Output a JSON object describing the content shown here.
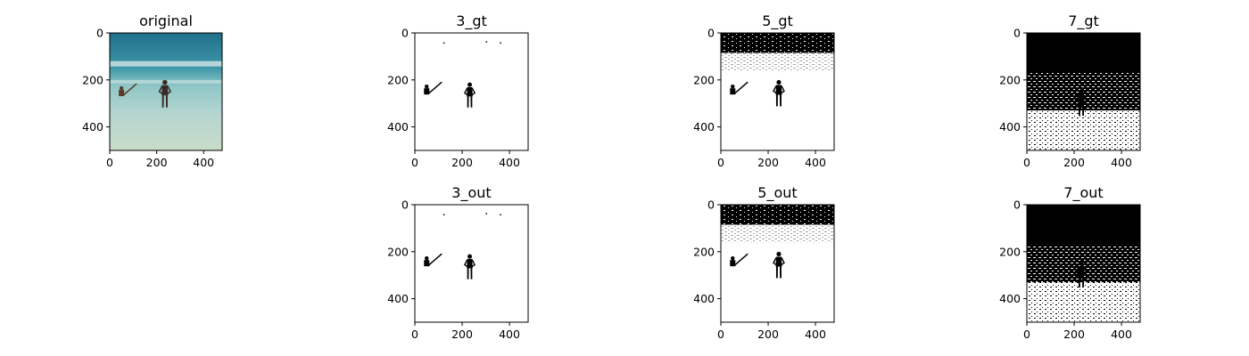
{
  "figure": {
    "panels": [
      {
        "id": "original",
        "title": "original",
        "kind": "photo"
      },
      {
        "id": "gt3",
        "title": "3_gt",
        "kind": "mask3"
      },
      {
        "id": "gt5",
        "title": "5_gt",
        "kind": "mask5"
      },
      {
        "id": "gt7",
        "title": "7_gt",
        "kind": "mask7"
      },
      {
        "id": "out3",
        "title": "3_out",
        "kind": "mask3"
      },
      {
        "id": "out5",
        "title": "5_out",
        "kind": "mask5"
      },
      {
        "id": "out7",
        "title": "7_out",
        "kind": "mask7"
      }
    ]
  },
  "chart_data": [
    {
      "type": "image",
      "title": "original",
      "xlim": [
        0,
        479
      ],
      "ylim": [
        500,
        0
      ],
      "xticks": [
        "0",
        "200",
        "400"
      ],
      "yticks": [
        "0",
        "200",
        "400"
      ]
    },
    {
      "type": "image",
      "title": "3_gt",
      "xlim": [
        0,
        479
      ],
      "ylim": [
        500,
        0
      ],
      "xticks": [
        "0",
        "200",
        "400"
      ],
      "yticks": [
        "0",
        "200",
        "400"
      ]
    },
    {
      "type": "image",
      "title": "5_gt",
      "xlim": [
        0,
        479
      ],
      "ylim": [
        500,
        0
      ],
      "xticks": [
        "0",
        "200",
        "400"
      ],
      "yticks": [
        "0",
        "200",
        "400"
      ]
    },
    {
      "type": "image",
      "title": "7_gt",
      "xlim": [
        0,
        479
      ],
      "ylim": [
        500,
        0
      ],
      "xticks": [
        "0",
        "200",
        "400"
      ],
      "yticks": [
        "0",
        "200",
        "400"
      ]
    },
    {
      "type": "image",
      "title": "3_out",
      "xlim": [
        0,
        479
      ],
      "ylim": [
        500,
        0
      ],
      "xticks": [
        "0",
        "200",
        "400"
      ],
      "yticks": [
        "0",
        "200",
        "400"
      ]
    },
    {
      "type": "image",
      "title": "5_out",
      "xlim": [
        0,
        479
      ],
      "ylim": [
        500,
        0
      ],
      "xticks": [
        "0",
        "200",
        "400"
      ],
      "yticks": [
        "0",
        "200",
        "400"
      ]
    },
    {
      "type": "image",
      "title": "7_out",
      "xlim": [
        0,
        479
      ],
      "ylim": [
        500,
        0
      ],
      "xticks": [
        "0",
        "200",
        "400"
      ],
      "yticks": [
        "0",
        "200",
        "400"
      ]
    }
  ],
  "colors": {
    "sea_deep": "#1f6f8b",
    "sea_mid": "#3f97a8",
    "sea_shallow": "#8fc6c6",
    "water_light": "#b6d6d0",
    "sand": "#c9dcc8",
    "mask_fg": "#000000",
    "mask_bg": "#ffffff"
  }
}
